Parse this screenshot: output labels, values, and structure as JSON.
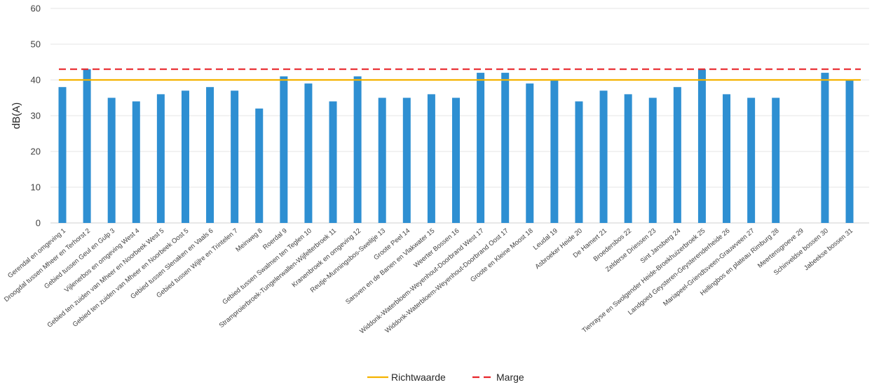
{
  "chart_data": {
    "type": "bar",
    "ylabel": "dB(A)",
    "xlabel": "",
    "ylim": [
      0,
      60
    ],
    "yticks": [
      0,
      10,
      20,
      30,
      40,
      50,
      60
    ],
    "grid": "horizontal",
    "legend_position": "bottom",
    "bar_color": "#2e8fd2",
    "categories": [
      "Gerendal en omgeving 1",
      "Droogdal tussen Mheer en Terhorst 2",
      "Gebied tussen Geul en Gulp 3",
      "Vijlenerbos en omgeving West 4",
      "Gebied ten zuiden van Mheer en Noorbeek West 5",
      "Gebied ten zuiden van Mheer en Noorbeek Oost 5",
      "Gebied tussen Slenaken en Vaals 6",
      "Gebied tussen Wijlre en Trintelen 7",
      "Meinweg 8",
      "Roerdal 9",
      "Gebied tussen Swalmen ten Teglen 10",
      "Stramproierbroek-Tungelerwallen-Wijfelterbroek 11",
      "Kranenbroek en omgeving 12",
      "Reutje-Munningsbos-Swelitje 13",
      "Groote Peel 14",
      "Sarsven en de Banen en Vlakwater 15",
      "Weerter Bossen 16",
      "Widdonk-Waterbloem-Weyenhout-Doorbrand West 17",
      "Widdonk-Waterbloem-Weyenhout-Doorbrand Oost 17",
      "Groote en Kleine Moost 18",
      "Leudal 19",
      "Asbroeker Heide 20",
      "De Hamert 21",
      "Broedersbos 22",
      "Zelderse Driessen 23",
      "Sint Jansberg 24",
      "Tienrayse en Swolgender Heide-Broekhuizerbroek 25",
      "Landgoed Geysteren-Geysterenderheide 26",
      "Mariapeel-Griendtsveen-Grauwveen 27",
      "Hellingbos en plateau Rimburg 28",
      "Meertensgroeve 29",
      "Schinveldse bossen 30",
      "Jabeekse bossen 31"
    ],
    "values": [
      38,
      43,
      35,
      34,
      36,
      37,
      38,
      37,
      32,
      41,
      39,
      34,
      41,
      35,
      35,
      36,
      35,
      42,
      42,
      39,
      40,
      34,
      37,
      36,
      35,
      38,
      43,
      36,
      35,
      35,
      null,
      42,
      40
    ],
    "reference_lines": [
      {
        "name": "Richtwaarde",
        "value": 40,
        "color": "#f5b300",
        "style": "solid"
      },
      {
        "name": "Marge",
        "value": 43,
        "color": "#e8262b",
        "style": "dashed"
      }
    ]
  }
}
